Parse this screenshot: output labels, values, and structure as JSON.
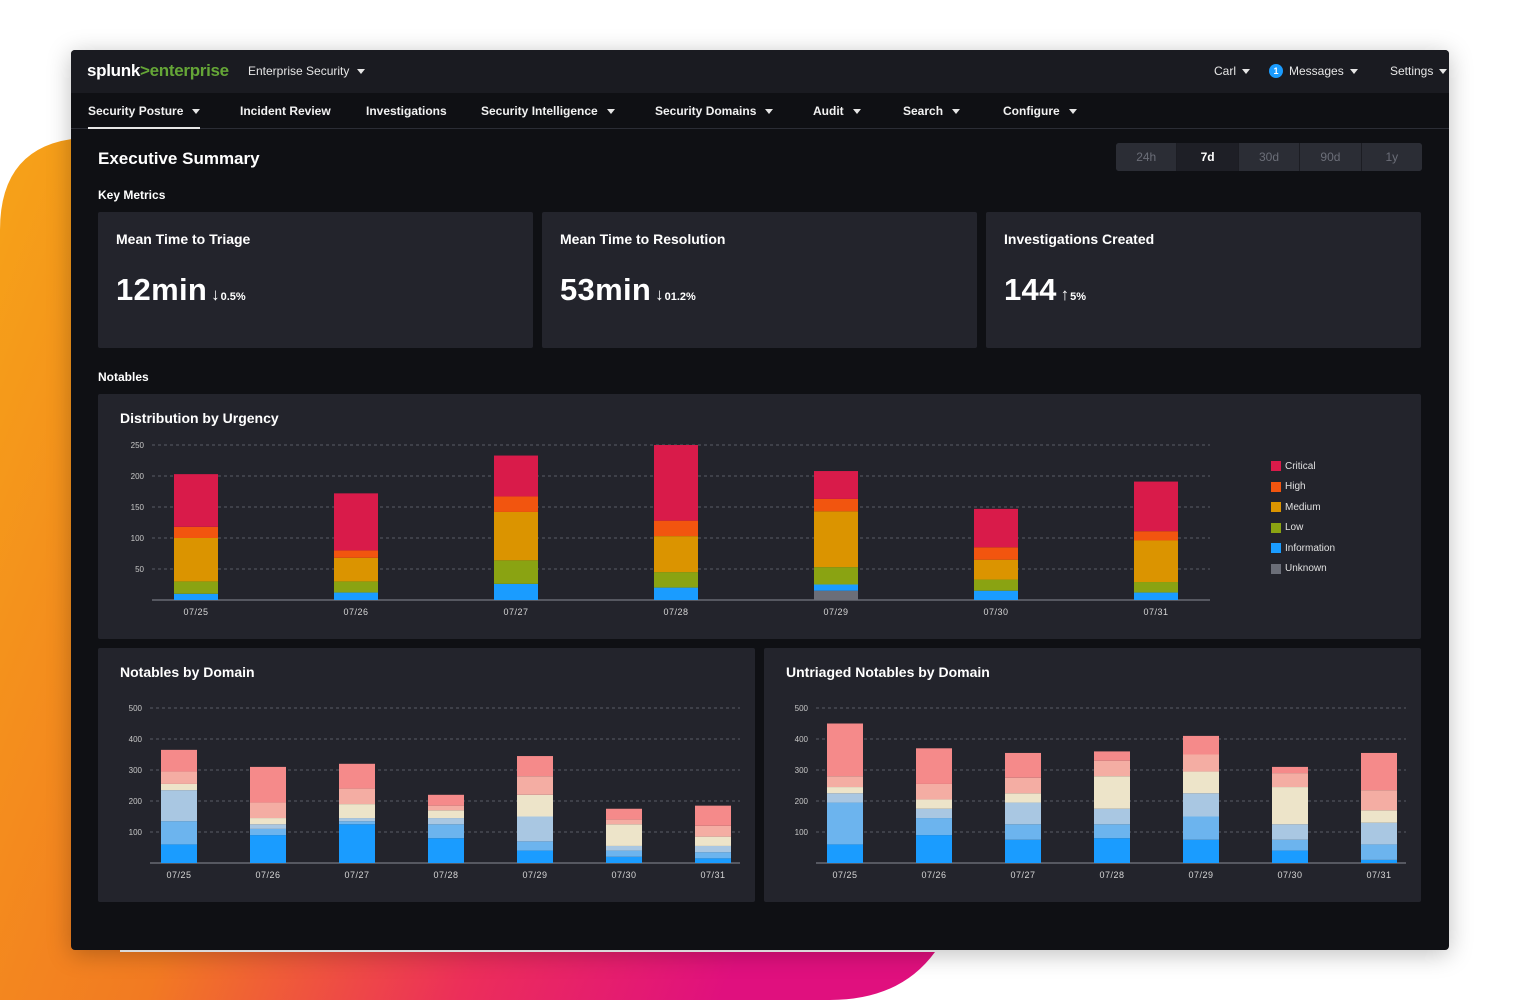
{
  "header": {
    "logo_word1": "splunk",
    "logo_word2": ">enterprise",
    "app_name": "Enterprise Security",
    "user": "Carl",
    "messages_count": "1",
    "messages_label": "Messages",
    "settings_label": "Settings"
  },
  "nav": [
    {
      "label": "Security Posture",
      "dropdown": true,
      "active": true
    },
    {
      "label": "Incident Review",
      "dropdown": false,
      "active": false
    },
    {
      "label": "Investigations",
      "dropdown": false,
      "active": false
    },
    {
      "label": "Security Intelligence",
      "dropdown": true,
      "active": false
    },
    {
      "label": "Security Domains",
      "dropdown": true,
      "active": false
    },
    {
      "label": "Audit",
      "dropdown": true,
      "active": false
    },
    {
      "label": "Search",
      "dropdown": true,
      "active": false
    },
    {
      "label": "Configure",
      "dropdown": true,
      "active": false
    }
  ],
  "page": {
    "title": "Executive Summary",
    "time_ranges": [
      "24h",
      "7d",
      "30d",
      "90d",
      "1y"
    ],
    "selected_range": "7d",
    "key_metrics_label": "Key Metrics",
    "notables_label": "Notables"
  },
  "metrics": [
    {
      "title": "Mean Time to Triage",
      "value": "12min",
      "direction": "down",
      "change": "0.5%"
    },
    {
      "title": "Mean Time to Resolution",
      "value": "53min",
      "direction": "down",
      "change": "01.2%"
    },
    {
      "title": "Investigations Created",
      "value": "144",
      "direction": "up",
      "change": "5%"
    }
  ],
  "chart_data": [
    {
      "type": "bar",
      "stacked": true,
      "title": "Distribution by Urgency",
      "categories": [
        "07/25",
        "07/26",
        "07/27",
        "07/28",
        "07/29",
        "07/30",
        "07/31"
      ],
      "ylim": [
        0,
        250
      ],
      "yticks": [
        50,
        100,
        150,
        200,
        250
      ],
      "grid": true,
      "legend_position": "right",
      "series": [
        {
          "name": "Unknown",
          "color": "#6b6e78",
          "values": [
            0,
            0,
            0,
            0,
            15,
            0,
            0
          ]
        },
        {
          "name": "Information",
          "color": "#1a9cff",
          "values": [
            10,
            12,
            26,
            20,
            10,
            15,
            12
          ]
        },
        {
          "name": "Low",
          "color": "#8aa312",
          "values": [
            20,
            18,
            38,
            25,
            28,
            18,
            17
          ]
        },
        {
          "name": "Medium",
          "color": "#db9400",
          "values": [
            70,
            38,
            78,
            58,
            90,
            32,
            67
          ]
        },
        {
          "name": "High",
          "color": "#f2550f",
          "values": [
            18,
            12,
            25,
            25,
            20,
            20,
            15
          ]
        },
        {
          "name": "Critical",
          "color": "#d91b4a",
          "values": [
            85,
            92,
            66,
            122,
            45,
            62,
            80
          ]
        }
      ]
    },
    {
      "type": "bar",
      "stacked": true,
      "title": "Notables by Domain",
      "categories": [
        "07/25",
        "07/26",
        "07/27",
        "07/28",
        "07/29",
        "07/30",
        "07/31"
      ],
      "ylim": [
        0,
        500
      ],
      "yticks": [
        100,
        200,
        300,
        400,
        500
      ],
      "grid": true,
      "series": [
        {
          "color": "#1a9cff",
          "values": [
            60,
            90,
            125,
            80,
            40,
            20,
            15
          ]
        },
        {
          "color": "#6cb4ee",
          "values": [
            75,
            20,
            10,
            45,
            30,
            20,
            20
          ]
        },
        {
          "color": "#a9c7e2",
          "values": [
            100,
            15,
            10,
            20,
            80,
            15,
            20
          ]
        },
        {
          "color": "#ede4c9",
          "values": [
            20,
            20,
            45,
            25,
            70,
            70,
            30
          ]
        },
        {
          "color": "#f4ada3",
          "values": [
            40,
            50,
            50,
            15,
            60,
            15,
            35
          ]
        },
        {
          "color": "#f58a8a",
          "values": [
            70,
            115,
            80,
            35,
            65,
            35,
            65
          ]
        }
      ]
    },
    {
      "type": "bar",
      "stacked": true,
      "title": "Untriaged Notables by Domain",
      "categories": [
        "07/25",
        "07/26",
        "07/27",
        "07/28",
        "07/29",
        "07/30",
        "07/31"
      ],
      "ylim": [
        0,
        500
      ],
      "yticks": [
        100,
        200,
        300,
        400,
        500
      ],
      "grid": true,
      "series": [
        {
          "color": "#1a9cff",
          "values": [
            60,
            90,
            75,
            80,
            75,
            40,
            10
          ]
        },
        {
          "color": "#6cb4ee",
          "values": [
            135,
            55,
            50,
            45,
            75,
            35,
            50
          ]
        },
        {
          "color": "#a9c7e2",
          "values": [
            30,
            30,
            70,
            50,
            75,
            50,
            70
          ]
        },
        {
          "color": "#ede4c9",
          "values": [
            20,
            30,
            30,
            105,
            70,
            120,
            40
          ]
        },
        {
          "color": "#f4ada3",
          "values": [
            35,
            50,
            50,
            50,
            55,
            45,
            65
          ]
        },
        {
          "color": "#f58a8a",
          "values": [
            170,
            115,
            80,
            30,
            60,
            20,
            120
          ]
        }
      ]
    }
  ]
}
